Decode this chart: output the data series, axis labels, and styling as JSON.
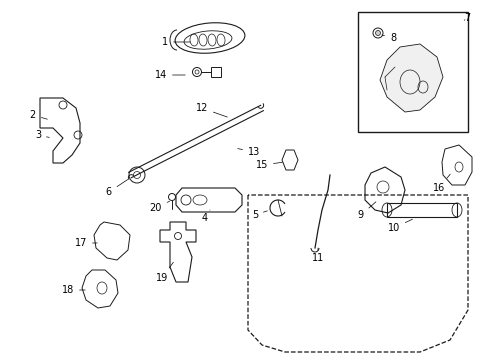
{
  "bg_color": "#ffffff",
  "line_color": "#1a1a1a",
  "figsize": [
    4.89,
    3.6
  ],
  "dpi": 100,
  "label_fontsize": 7.0
}
